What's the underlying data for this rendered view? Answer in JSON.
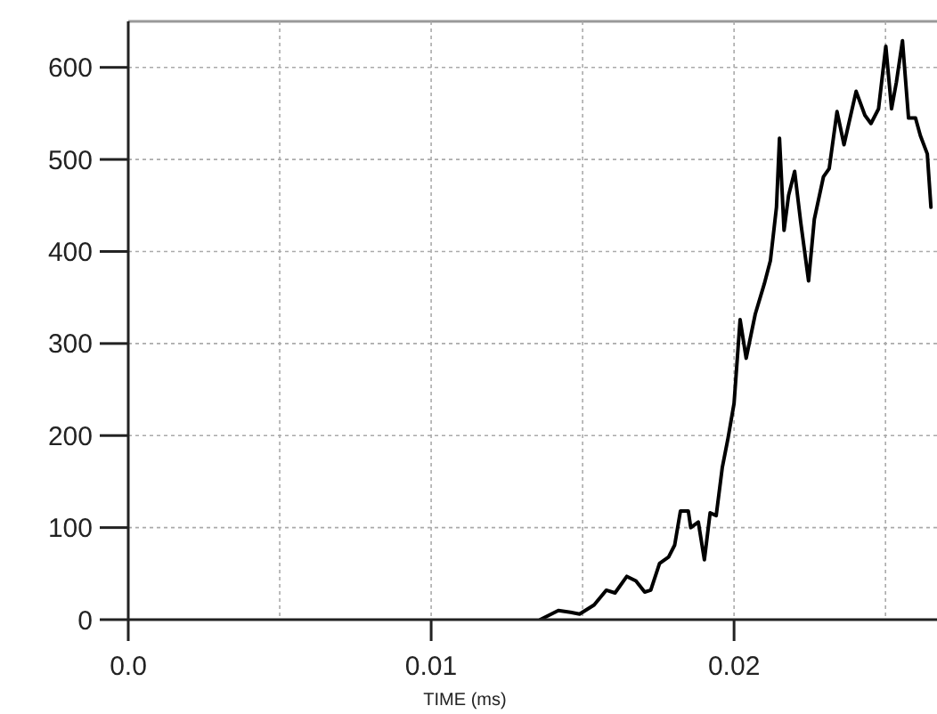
{
  "chart_data": {
    "type": "line",
    "xlabel": "TIME (ms)",
    "x": [
      0.0136,
      0.0142,
      0.0146,
      0.0149,
      0.01538,
      0.01578,
      0.01607,
      0.01646,
      0.01676,
      0.01705,
      0.01725,
      0.01754,
      0.01784,
      0.01804,
      0.01823,
      0.01849,
      0.01857,
      0.01882,
      0.01902,
      0.01921,
      0.01941,
      0.01961,
      0.0198,
      0.02,
      0.0202,
      0.0204,
      0.0207,
      0.021,
      0.0212,
      0.0214,
      0.0215,
      0.02165,
      0.0218,
      0.022,
      0.0222,
      0.02246,
      0.02265,
      0.02295,
      0.02314,
      0.0234,
      0.02363,
      0.02403,
      0.02432,
      0.02452,
      0.02477,
      0.02501,
      0.0252,
      0.02536,
      0.02556,
      0.02576,
      0.02599,
      0.02615,
      0.02638,
      0.0265
    ],
    "series": [
      {
        "color": "#000000",
        "values": [
          0,
          10,
          8,
          6,
          16,
          32,
          29,
          47,
          42,
          30,
          32,
          61,
          68,
          81,
          118,
          118,
          100,
          106,
          65,
          116,
          113,
          165,
          197,
          235,
          326,
          284,
          332,
          365,
          390,
          448,
          523,
          423,
          461,
          487,
          432,
          368,
          435,
          481,
          490,
          552,
          516,
          574,
          548,
          539,
          555,
          623,
          555,
          584,
          629,
          545,
          545,
          526,
          506,
          448
        ]
      }
    ],
    "xlim": [
      0,
      0.0267
    ],
    "ylim": [
      0,
      650
    ],
    "xticks": [
      {
        "value": 0,
        "label": "0.0"
      },
      {
        "value": 0.005,
        "label": null
      },
      0.01,
      {
        "value": 0.015,
        "label": null
      },
      0.02,
      {
        "value": 0.025,
        "label": null
      }
    ],
    "yticks": [
      0,
      100,
      200,
      300,
      400,
      500,
      600
    ],
    "grid": true,
    "line_style": "solid",
    "marker": "none"
  }
}
